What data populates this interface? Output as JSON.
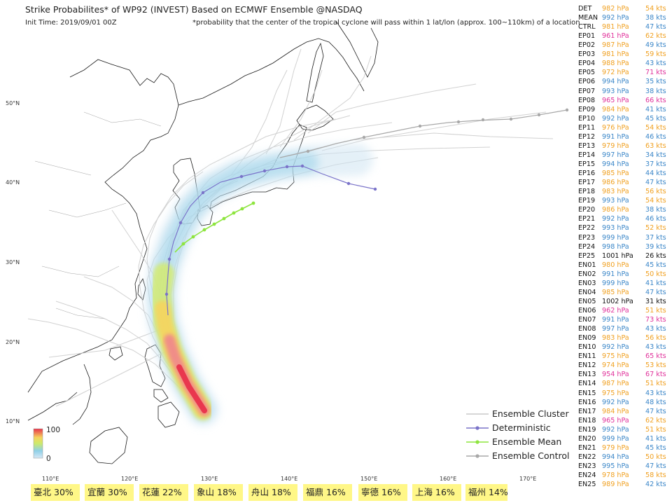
{
  "header": {
    "title": "Strike Probabilites* of WP92 (INVEST) Based on ECMWF Ensemble  @NASDAQ",
    "init_time": "Init Time: 2019/09/01 00Z",
    "note": "*probability that the center of the tropical cyclone will pass within 1 lat/lon (approx. 100~110km) of a location"
  },
  "axes": {
    "lat_labels": [
      "50°N",
      "40°N",
      "30°N",
      "20°N",
      "10°N"
    ],
    "lon_labels": [
      "110°E",
      "120°E",
      "130°E",
      "140°E",
      "150°E",
      "160°E",
      "170°E"
    ]
  },
  "colors": {
    "cluster": "#c8c8c8",
    "deterministic": "#7a73c9",
    "ensemble_mean": "#8ee53f",
    "ensemble_control": "#a8a8a8",
    "pressure_orange": "#f0a020",
    "pressure_blue": "#3a86c8",
    "pressure_magenta": "#e0309a",
    "pressure_black": "#111111",
    "city_bg": "#fff787"
  },
  "members": [
    {
      "id": "DET",
      "pressure": "982 hPa",
      "wind": "54 kts",
      "p_color": "orange",
      "w_color": "orange"
    },
    {
      "id": "MEAN",
      "pressure": "992 hPa",
      "wind": "38 kts",
      "p_color": "blue",
      "w_color": "blue"
    },
    {
      "id": "CTRL",
      "pressure": "981 hPa",
      "wind": "47 kts",
      "p_color": "orange",
      "w_color": "blue"
    },
    {
      "id": "EP01",
      "pressure": "961 hPa",
      "wind": "62 kts",
      "p_color": "magenta",
      "w_color": "orange"
    },
    {
      "id": "EP02",
      "pressure": "987 hPa",
      "wind": "49 kts",
      "p_color": "orange",
      "w_color": "blue"
    },
    {
      "id": "EP03",
      "pressure": "981 hPa",
      "wind": "59 kts",
      "p_color": "orange",
      "w_color": "orange"
    },
    {
      "id": "EP04",
      "pressure": "988 hPa",
      "wind": "43 kts",
      "p_color": "orange",
      "w_color": "blue"
    },
    {
      "id": "EP05",
      "pressure": "972 hPa",
      "wind": "71 kts",
      "p_color": "orange",
      "w_color": "magenta"
    },
    {
      "id": "EP06",
      "pressure": "994 hPa",
      "wind": "35 kts",
      "p_color": "blue",
      "w_color": "blue"
    },
    {
      "id": "EP07",
      "pressure": "993 hPa",
      "wind": "38 kts",
      "p_color": "blue",
      "w_color": "blue"
    },
    {
      "id": "EP08",
      "pressure": "965 hPa",
      "wind": "66 kts",
      "p_color": "magenta",
      "w_color": "magenta"
    },
    {
      "id": "EP09",
      "pressure": "984 hPa",
      "wind": "41 kts",
      "p_color": "orange",
      "w_color": "blue"
    },
    {
      "id": "EP10",
      "pressure": "992 hPa",
      "wind": "45 kts",
      "p_color": "blue",
      "w_color": "blue"
    },
    {
      "id": "EP11",
      "pressure": "976 hPa",
      "wind": "54 kts",
      "p_color": "orange",
      "w_color": "orange"
    },
    {
      "id": "EP12",
      "pressure": "991 hPa",
      "wind": "46 kts",
      "p_color": "blue",
      "w_color": "blue"
    },
    {
      "id": "EP13",
      "pressure": "979 hPa",
      "wind": "63 kts",
      "p_color": "orange",
      "w_color": "orange"
    },
    {
      "id": "EP14",
      "pressure": "997 hPa",
      "wind": "34 kts",
      "p_color": "blue",
      "w_color": "blue"
    },
    {
      "id": "EP15",
      "pressure": "994 hPa",
      "wind": "37 kts",
      "p_color": "blue",
      "w_color": "blue"
    },
    {
      "id": "EP16",
      "pressure": "985 hPa",
      "wind": "44 kts",
      "p_color": "orange",
      "w_color": "blue"
    },
    {
      "id": "EP17",
      "pressure": "986 hPa",
      "wind": "47 kts",
      "p_color": "orange",
      "w_color": "blue"
    },
    {
      "id": "EP18",
      "pressure": "983 hPa",
      "wind": "56 kts",
      "p_color": "orange",
      "w_color": "orange"
    },
    {
      "id": "EP19",
      "pressure": "993 hPa",
      "wind": "54 kts",
      "p_color": "blue",
      "w_color": "orange"
    },
    {
      "id": "EP20",
      "pressure": "986 hPa",
      "wind": "38 kts",
      "p_color": "orange",
      "w_color": "blue"
    },
    {
      "id": "EP21",
      "pressure": "992 hPa",
      "wind": "46 kts",
      "p_color": "blue",
      "w_color": "blue"
    },
    {
      "id": "EP22",
      "pressure": "993 hPa",
      "wind": "52 kts",
      "p_color": "blue",
      "w_color": "orange"
    },
    {
      "id": "EP23",
      "pressure": "999 hPa",
      "wind": "37 kts",
      "p_color": "blue",
      "w_color": "blue"
    },
    {
      "id": "EP24",
      "pressure": "998 hPa",
      "wind": "39 kts",
      "p_color": "blue",
      "w_color": "blue"
    },
    {
      "id": "EP25",
      "pressure": "1001 hPa",
      "wind": "26 kts",
      "p_color": "black",
      "w_color": "black"
    },
    {
      "id": "EN01",
      "pressure": "980 hPa",
      "wind": "45 kts",
      "p_color": "orange",
      "w_color": "blue"
    },
    {
      "id": "EN02",
      "pressure": "991 hPa",
      "wind": "50 kts",
      "p_color": "blue",
      "w_color": "orange"
    },
    {
      "id": "EN03",
      "pressure": "999 hPa",
      "wind": "41 kts",
      "p_color": "blue",
      "w_color": "blue"
    },
    {
      "id": "EN04",
      "pressure": "985 hPa",
      "wind": "47 kts",
      "p_color": "orange",
      "w_color": "blue"
    },
    {
      "id": "EN05",
      "pressure": "1002 hPa",
      "wind": "31 kts",
      "p_color": "black",
      "w_color": "black"
    },
    {
      "id": "EN06",
      "pressure": "962 hPa",
      "wind": "51 kts",
      "p_color": "magenta",
      "w_color": "orange"
    },
    {
      "id": "EN07",
      "pressure": "991 hPa",
      "wind": "73 kts",
      "p_color": "blue",
      "w_color": "magenta"
    },
    {
      "id": "EN08",
      "pressure": "997 hPa",
      "wind": "43 kts",
      "p_color": "blue",
      "w_color": "blue"
    },
    {
      "id": "EN09",
      "pressure": "983 hPa",
      "wind": "56 kts",
      "p_color": "orange",
      "w_color": "orange"
    },
    {
      "id": "EN10",
      "pressure": "992 hPa",
      "wind": "43 kts",
      "p_color": "blue",
      "w_color": "blue"
    },
    {
      "id": "EN11",
      "pressure": "975 hPa",
      "wind": "65 kts",
      "p_color": "orange",
      "w_color": "magenta"
    },
    {
      "id": "EN12",
      "pressure": "974 hPa",
      "wind": "53 kts",
      "p_color": "orange",
      "w_color": "orange"
    },
    {
      "id": "EN13",
      "pressure": "954 hPa",
      "wind": "67 kts",
      "p_color": "magenta",
      "w_color": "magenta"
    },
    {
      "id": "EN14",
      "pressure": "987 hPa",
      "wind": "51 kts",
      "p_color": "orange",
      "w_color": "orange"
    },
    {
      "id": "EN15",
      "pressure": "975 hPa",
      "wind": "43 kts",
      "p_color": "orange",
      "w_color": "blue"
    },
    {
      "id": "EN16",
      "pressure": "992 hPa",
      "wind": "48 kts",
      "p_color": "blue",
      "w_color": "blue"
    },
    {
      "id": "EN17",
      "pressure": "984 hPa",
      "wind": "47 kts",
      "p_color": "orange",
      "w_color": "blue"
    },
    {
      "id": "EN18",
      "pressure": "965 hPa",
      "wind": "62 kts",
      "p_color": "magenta",
      "w_color": "orange"
    },
    {
      "id": "EN19",
      "pressure": "992 hPa",
      "wind": "51 kts",
      "p_color": "blue",
      "w_color": "orange"
    },
    {
      "id": "EN20",
      "pressure": "999 hPa",
      "wind": "41 kts",
      "p_color": "blue",
      "w_color": "blue"
    },
    {
      "id": "EN21",
      "pressure": "979 hPa",
      "wind": "45 kts",
      "p_color": "orange",
      "w_color": "blue"
    },
    {
      "id": "EN22",
      "pressure": "994 hPa",
      "wind": "50 kts",
      "p_color": "blue",
      "w_color": "orange"
    },
    {
      "id": "EN23",
      "pressure": "995 hPa",
      "wind": "47 kts",
      "p_color": "blue",
      "w_color": "blue"
    },
    {
      "id": "EN24",
      "pressure": "978 hPa",
      "wind": "58 kts",
      "p_color": "orange",
      "w_color": "orange"
    },
    {
      "id": "EN25",
      "pressure": "989 hPa",
      "wind": "42 kts",
      "p_color": "orange",
      "w_color": "blue"
    }
  ],
  "legend": [
    {
      "label": "Ensemble Cluster",
      "color": "#c8c8c8",
      "marker": false
    },
    {
      "label": "Deterministic",
      "color": "#7a73c9",
      "marker": true
    },
    {
      "label": "Ensemble Mean",
      "color": "#8ee53f",
      "marker": true
    },
    {
      "label": "Ensemble Control",
      "color": "#a8a8a8",
      "marker": true
    }
  ],
  "colorbar": {
    "max_label": "100",
    "min_label": "0"
  },
  "cities": [
    {
      "name": "臺北",
      "prob": "30%"
    },
    {
      "name": "宜蘭",
      "prob": "30%"
    },
    {
      "name": "花蓮",
      "prob": "22%"
    },
    {
      "name": "象山",
      "prob": "18%"
    },
    {
      "name": "舟山",
      "prob": "18%"
    },
    {
      "name": "福鼎",
      "prob": "16%"
    },
    {
      "name": "寧德",
      "prob": "16%"
    },
    {
      "name": "上海",
      "prob": "16%"
    },
    {
      "name": "福州",
      "prob": "14%"
    }
  ]
}
